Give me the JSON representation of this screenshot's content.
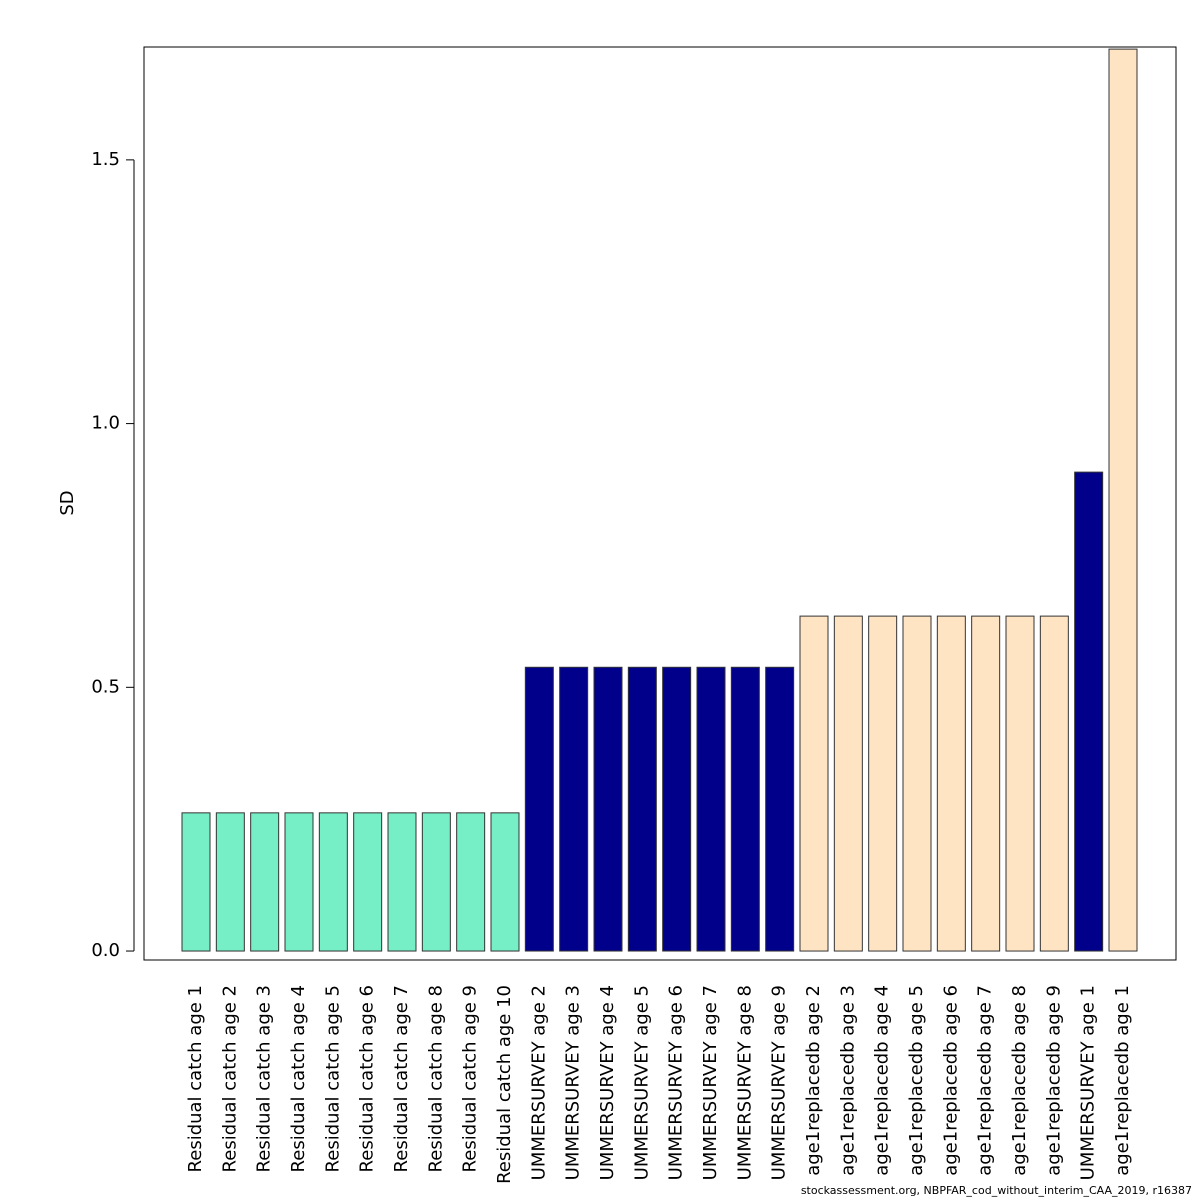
{
  "chart_data": {
    "type": "bar",
    "y_label": "SD",
    "footer": "stockassessment.org, NBPFAR_cod_without_interim_CAA_2019, r16387",
    "categories": [
      "Residual catch age 1",
      "Residual catch age 2",
      "Residual catch age 3",
      "Residual catch age 4",
      "Residual catch age 5",
      "Residual catch age 6",
      "Residual catch age 7",
      "Residual catch age 8",
      "Residual catch age 9",
      "Residual catch age 10",
      "UMMERSURVEY age 2",
      "UMMERSURVEY age 3",
      "UMMERSURVEY age 4",
      "UMMERSURVEY age 5",
      "UMMERSURVEY age 6",
      "UMMERSURVEY age 7",
      "UMMERSURVEY age 8",
      "UMMERSURVEY age 9",
      "age1replacedb age 2",
      "age1replacedb age 3",
      "age1replacedb age 4",
      "age1replacedb age 5",
      "age1replacedb age 6",
      "age1replacedb age 7",
      "age1replacedb age 8",
      "age1replacedb age 9",
      "UMMERSURVEY age 1",
      "age1replacedb age 1"
    ],
    "values": [
      0.262,
      0.262,
      0.262,
      0.262,
      0.262,
      0.262,
      0.262,
      0.262,
      0.262,
      0.262,
      0.538,
      0.538,
      0.538,
      0.538,
      0.538,
      0.538,
      0.538,
      0.538,
      0.635,
      0.635,
      0.635,
      0.635,
      0.635,
      0.635,
      0.635,
      0.635,
      0.908,
      1.71
    ],
    "colors": [
      "#76eec6",
      "#76eec6",
      "#76eec6",
      "#76eec6",
      "#76eec6",
      "#76eec6",
      "#76eec6",
      "#76eec6",
      "#76eec6",
      "#76eec6",
      "#00008b",
      "#00008b",
      "#00008b",
      "#00008b",
      "#00008b",
      "#00008b",
      "#00008b",
      "#00008b",
      "#ffe4c4",
      "#ffe4c4",
      "#ffe4c4",
      "#ffe4c4",
      "#ffe4c4",
      "#ffe4c4",
      "#ffe4c4",
      "#ffe4c4",
      "#00008b",
      "#ffe4c4"
    ],
    "ylim": [
      -0.017,
      1.714
    ],
    "yticks": [
      {
        "value": 0,
        "label": "0.0"
      },
      {
        "value": 0.5,
        "label": "0.5"
      },
      {
        "value": 1,
        "label": "1.0"
      },
      {
        "value": 1.5,
        "label": "1.5"
      }
    ],
    "grid": false
  }
}
